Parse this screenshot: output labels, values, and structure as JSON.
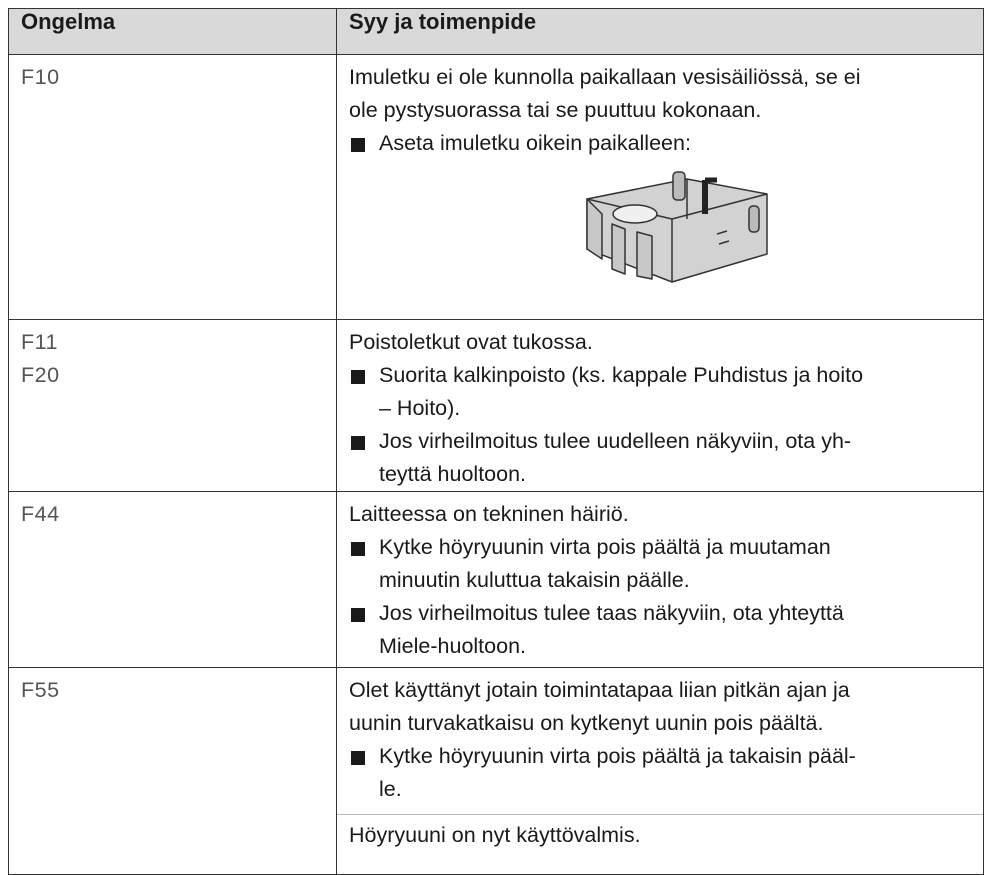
{
  "table": {
    "headers": [
      "Ongelma",
      "Syy ja toimenpide"
    ],
    "rows": [
      {
        "codes": [
          "F10"
        ],
        "content": [
          {
            "kind": "text",
            "lines": [
              "Imuletku ei ole kunnolla paikallaan vesisäiliössä, se ei",
              "ole pystysuorassa tai se puuttuu kokonaan."
            ]
          },
          {
            "kind": "bullet",
            "lines": [
              "Aseta imuletku oikein paikalleen:"
            ]
          }
        ]
      },
      {
        "codes": [
          "F11",
          "F20"
        ],
        "content": [
          {
            "kind": "text",
            "lines": [
              "Poistoletkut ovat tukossa."
            ]
          },
          {
            "kind": "bullet",
            "lines": [
              "Suorita kalkinpoisto (ks. kappale Puhdistus ja hoito",
              "– Hoito)."
            ]
          },
          {
            "kind": "bullet",
            "lines": [
              "Jos virheilmoitus tulee uudelleen näkyviin, ota yh-",
              "teyttä huoltoon."
            ]
          }
        ]
      },
      {
        "codes": [
          "F44"
        ],
        "content": [
          {
            "kind": "text",
            "lines": [
              "Laitteessa on tekninen häiriö."
            ]
          },
          {
            "kind": "bullet",
            "lines": [
              "Kytke höyryuunin virta pois päältä ja muutaman",
              "minuutin kuluttua takaisin päälle."
            ]
          },
          {
            "kind": "bullet",
            "lines": [
              "Jos virheilmoitus tulee taas näkyviin, ota yhteyttä",
              "Miele-huoltoon."
            ]
          }
        ]
      },
      {
        "codes": [
          "F55"
        ],
        "content": [
          {
            "kind": "text",
            "lines": [
              "Olet käyttänyt jotain toimintatapaa liian pitkän ajan ja",
              "uunin turvakatkaisu on kytkenyt uunin pois päältä."
            ]
          },
          {
            "kind": "bullet",
            "lines": [
              "Kytke höyryuunin virta pois päältä ja takaisin pääl-",
              "le."
            ]
          },
          {
            "kind": "text",
            "lines": [
              "Höyryuuni on nyt käyttövalmis."
            ],
            "ruled": true
          }
        ]
      }
    ]
  }
}
